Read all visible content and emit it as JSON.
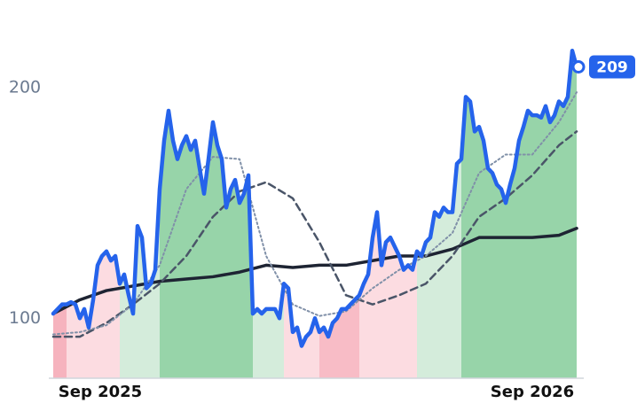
{
  "chart_data": {
    "type": "line",
    "xlim": [
      -1,
      119
    ],
    "xticks": [
      {
        "value": 10.6,
        "label": "Sep 2025"
      },
      {
        "value": 108,
        "label": "Sep 2026"
      }
    ],
    "ylim": [
      74,
      238
    ],
    "yticks": [
      100,
      200
    ],
    "series": [
      {
        "color": "#2563eb",
        "style": "solid",
        "x": [
          0,
          1,
          2,
          3,
          4,
          5,
          6,
          7,
          8,
          9,
          10,
          11,
          12,
          13,
          14,
          15,
          16,
          17,
          18,
          19,
          20,
          21,
          22,
          23,
          24,
          25,
          26,
          27,
          28,
          29,
          30,
          31,
          32,
          33,
          34,
          35,
          36,
          37,
          38,
          39,
          40,
          41,
          42,
          43,
          44,
          45,
          46,
          47,
          48,
          49,
          50,
          51,
          52,
          53,
          54,
          55,
          56,
          57,
          58,
          59,
          60,
          61,
          62,
          63,
          64,
          65,
          66,
          67,
          68,
          69,
          70,
          71,
          72,
          73,
          74,
          75,
          76,
          77,
          78,
          79,
          80,
          81,
          82,
          83,
          84,
          85,
          86,
          87,
          88,
          89,
          90,
          91,
          92,
          93,
          94,
          95,
          96,
          97,
          98,
          99,
          100,
          101,
          102,
          103,
          104,
          105,
          106,
          107,
          108,
          109,
          110,
          111,
          112,
          113,
          114,
          115,
          116,
          117,
          118
        ],
        "values": [
          102,
          104,
          106,
          106,
          107,
          106,
          100,
          104,
          96,
          108,
          123,
          127,
          129,
          125,
          127,
          115,
          119,
          110,
          102,
          140,
          135,
          113,
          115,
          121,
          156,
          177,
          190,
          177,
          169,
          175,
          179,
          173,
          177,
          165,
          154,
          169,
          185,
          175,
          169,
          148,
          156,
          160,
          150,
          154,
          162,
          102,
          104,
          102,
          104,
          104,
          104,
          100,
          115,
          113,
          94,
          96,
          88,
          92,
          94,
          100,
          94,
          96,
          92,
          98,
          100,
          104,
          104,
          106,
          108,
          110,
          115,
          119,
          135,
          146,
          123,
          133,
          135,
          131,
          127,
          121,
          123,
          121,
          129,
          127,
          133,
          135,
          146,
          144,
          148,
          146,
          146,
          167,
          169,
          196,
          194,
          181,
          183,
          177,
          165,
          163,
          158,
          156,
          150,
          158,
          165,
          177,
          183,
          190,
          188,
          188,
          187,
          192,
          185,
          188,
          194,
          192,
          196,
          216,
          209
        ]
      },
      {
        "color": "#8090a8",
        "style": "dotted",
        "x": [
          0,
          6,
          12,
          18,
          24,
          30,
          36,
          42,
          48,
          54,
          60,
          66,
          72,
          78,
          84,
          90,
          96,
          102,
          108,
          114,
          118
        ],
        "values": [
          93,
          94,
          97,
          106,
          123,
          156,
          170,
          169,
          127,
          106,
          101,
          103,
          113,
          121,
          127,
          137,
          163,
          171,
          171,
          185,
          198
        ]
      },
      {
        "color": "#4a5568",
        "style": "dashed",
        "x": [
          0,
          6,
          12,
          18,
          24,
          30,
          36,
          42,
          48,
          54,
          60,
          66,
          72,
          78,
          84,
          90,
          96,
          102,
          108,
          114,
          118
        ],
        "values": [
          92,
          92,
          98,
          106,
          115,
          127,
          144,
          155,
          159,
          152,
          133,
          110,
          106,
          110,
          115,
          127,
          144,
          152,
          162,
          175,
          181
        ]
      },
      {
        "color": "#1e2433",
        "style": "thick",
        "x": [
          0,
          6,
          12,
          18,
          24,
          30,
          36,
          42,
          48,
          54,
          60,
          66,
          72,
          78,
          84,
          90,
          96,
          102,
          108,
          114,
          118
        ],
        "values": [
          102,
          108,
          112,
          114,
          116,
          117,
          118,
          120,
          123,
          122,
          123,
          123,
          125,
          127,
          127,
          130,
          135,
          135,
          135,
          136,
          139
        ]
      }
    ],
    "regions": [
      {
        "start": 0,
        "end": 3,
        "color": "#f6b3be"
      },
      {
        "start": 3,
        "end": 15,
        "color": "#fcdce1"
      },
      {
        "start": 15,
        "end": 24,
        "color": "#d4ecdb"
      },
      {
        "start": 24,
        "end": 45,
        "color": "#97d4a9"
      },
      {
        "start": 45,
        "end": 52,
        "color": "#d4ecdb"
      },
      {
        "start": 52,
        "end": 60,
        "color": "#fcdce1"
      },
      {
        "start": 60,
        "end": 69,
        "color": "#f8bcc6"
      },
      {
        "start": 69,
        "end": 82,
        "color": "#fcdce1"
      },
      {
        "start": 82,
        "end": 92,
        "color": "#d4ecdb"
      },
      {
        "start": 92,
        "end": 118,
        "color": "#97d4a9"
      }
    ]
  }
}
